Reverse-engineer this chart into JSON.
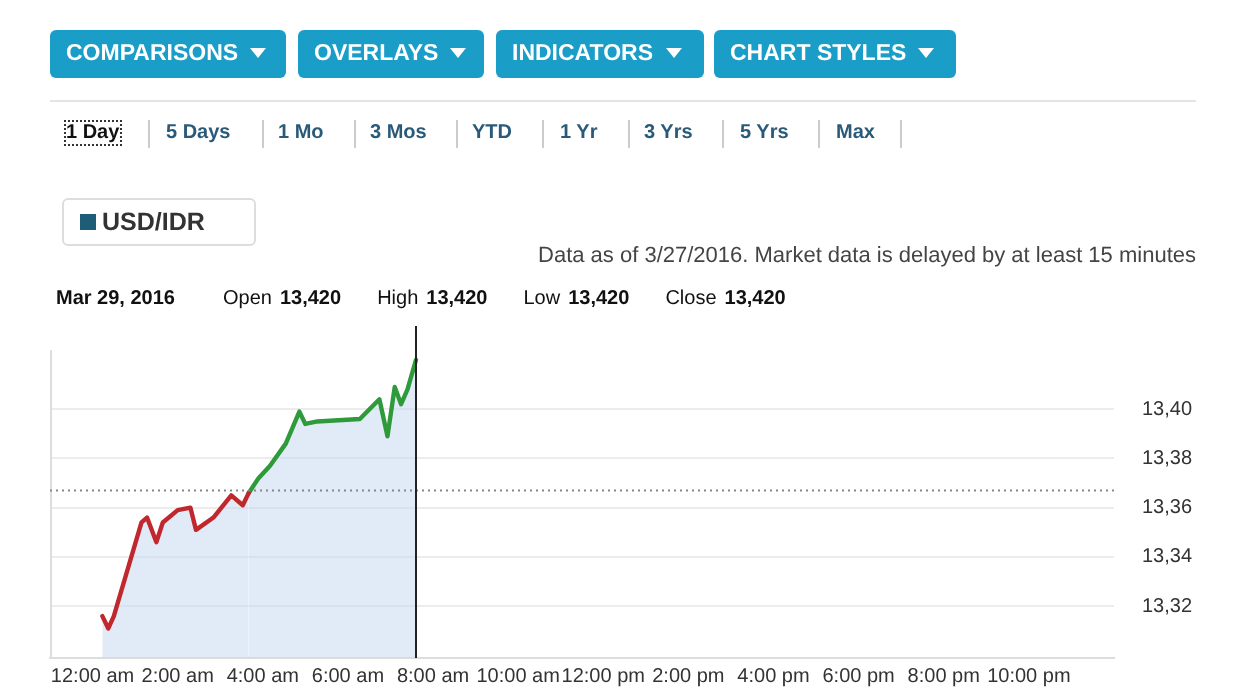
{
  "chart_data": {
    "type": "area",
    "title": "Mar 29, 2016",
    "legend_title": "USD/IDR",
    "grid": "y",
    "marker": "none",
    "line_style": "solid",
    "annotations": [
      "COMPARISONS",
      "OVERLAYS",
      "INDICATORS",
      "CHART STYLES",
      "1 Day",
      "5 Days",
      "1 Mo",
      "3 Mos",
      "YTD",
      "1 Yr",
      "3 Yrs",
      "5 Yrs",
      "Max",
      "Data as of 3/27/2016. Market data is delayed by at least 15 minutes",
      "Open",
      "13,420",
      "High",
      "13,420",
      "Low",
      "13,420",
      "Close",
      "13,420"
    ],
    "series": [
      {
        "color": "#c0282d",
        "x": [
          0.23,
          0.37,
          0.5,
          1.15,
          1.28,
          1.5,
          1.65,
          2.0,
          2.3,
          2.43,
          2.84,
          3.26,
          3.53,
          3.67
        ],
        "values": [
          13.316,
          13.311,
          13.316,
          13.354,
          13.356,
          13.346,
          13.354,
          13.359,
          13.36,
          13.351,
          13.356,
          13.365,
          13.361,
          13.366
        ]
      },
      {
        "color": "#2e9a3a",
        "x": [
          3.67,
          3.9,
          4.17,
          4.54,
          4.86,
          5.0,
          5.28,
          6.28,
          6.74,
          6.93,
          7.1,
          7.25,
          7.4,
          7.6
        ],
        "values": [
          13.366,
          13.372,
          13.377,
          13.386,
          13.399,
          13.394,
          13.395,
          13.396,
          13.404,
          13.389,
          13.409,
          13.402,
          13.408,
          13.42
        ]
      }
    ],
    "xlim": [
      -1,
      24
    ],
    "xticks": [
      {
        "value": 0,
        "label": "12:00 am"
      },
      {
        "value": 2,
        "label": "2:00 am"
      },
      {
        "value": 4,
        "label": "4:00 am"
      },
      {
        "value": 6,
        "label": "6:00 am"
      },
      {
        "value": 8,
        "label": "8:00 am"
      },
      {
        "value": 10,
        "label": "10:00 am"
      },
      {
        "value": 12,
        "label": "12:00 pm"
      },
      {
        "value": 14,
        "label": "2:00 pm"
      },
      {
        "value": 16,
        "label": "4:00 pm"
      },
      {
        "value": 18,
        "label": "6:00 pm"
      },
      {
        "value": 20,
        "label": "8:00 pm"
      },
      {
        "value": 22,
        "label": "10:00 pm"
      }
    ],
    "ylim": [
      13.299,
      13.424
    ],
    "yticks": [
      {
        "value": 13.32,
        "label": "13,32"
      },
      {
        "value": 13.34,
        "label": "13,34"
      },
      {
        "value": 13.36,
        "label": "13,36"
      },
      {
        "value": 13.38,
        "label": "13,38"
      },
      {
        "value": 13.4,
        "label": "13,40"
      }
    ],
    "ref_lines": [
      {
        "axis": "y",
        "value": 13.367,
        "color": "#888888",
        "line_style": "dotted"
      },
      {
        "axis": "x",
        "value": 7.6,
        "color": "#222222",
        "line_style": "solid"
      }
    ]
  }
}
